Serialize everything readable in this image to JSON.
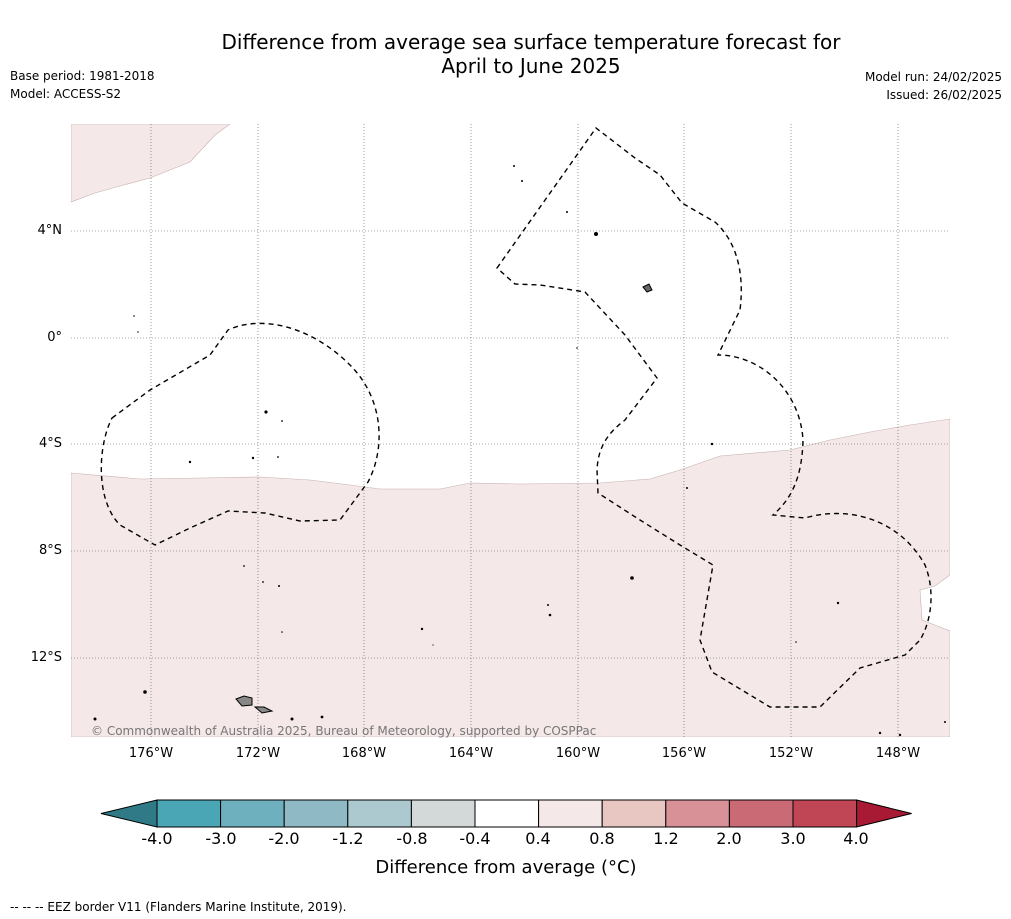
{
  "title_line1": "Difference from average sea surface temperature forecast for",
  "title_line2": "April to June 2025",
  "base_period": "Base period: 1981-2018",
  "model": "Model: ACCESS-S2",
  "model_run": "Model run: 24/02/2025",
  "issued": "Issued: 26/02/2025",
  "copyright": "© Commonwealth of Australia 2025, Bureau of Meteorology, supported by COSPPac",
  "lat_labels": [
    "4°N",
    "0°",
    "4°S",
    "8°S",
    "12°S"
  ],
  "lon_labels": [
    "176°W",
    "172°W",
    "168°W",
    "164°W",
    "160°W",
    "156°W",
    "152°W",
    "148°W"
  ],
  "colorbar": {
    "title": "Difference from average (°C)",
    "tick_labels": [
      "-4.0",
      "-3.0",
      "-2.0",
      "-1.2",
      "-0.8",
      "-0.4",
      "0.4",
      "0.8",
      "1.2",
      "2.0",
      "3.0",
      "4.0"
    ],
    "colors": [
      "#2f7a86",
      "#4aa5b5",
      "#6fb0be",
      "#8fbac5",
      "#abc9cf",
      "#d3d9d9",
      "#ffffff",
      "#f4e8e8",
      "#e8c6c2",
      "#d79197",
      "#c96a74",
      "#c04656",
      "#a81a34"
    ]
  },
  "map": {
    "shading_color": "#f4e8e8",
    "shading_category": "0.4 to 0.8"
  },
  "footnote": "-- -- -- EEZ border V11 (Flanders Marine Institute, 2019)."
}
